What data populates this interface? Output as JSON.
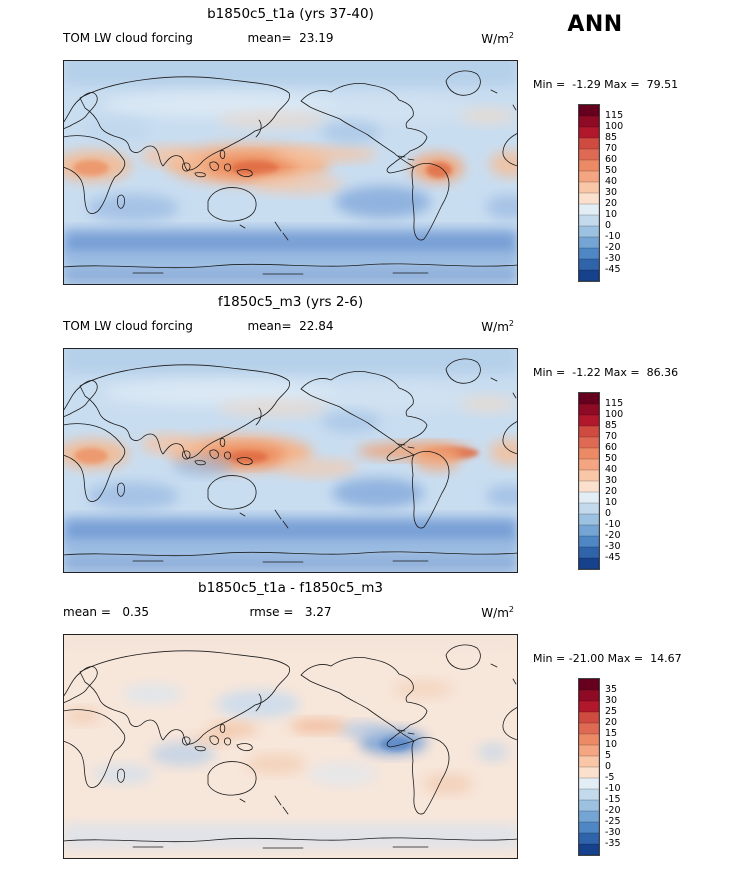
{
  "season_label": "ANN",
  "panels": [
    {
      "title": "b1850c5_t1a (yrs 37-40)",
      "left_text": "TOM LW cloud forcing",
      "center_text": "mean=  23.19",
      "units_base": "W/m",
      "units_exp": "2",
      "minmax": "Min =  -1.29 Max =  79.51"
    },
    {
      "title": "f1850c5_m3 (yrs 2-6)",
      "left_text": "TOM LW cloud forcing",
      "center_text": "mean=  22.84",
      "units_base": "W/m",
      "units_exp": "2",
      "minmax": "Min =  -1.22 Max =  86.36"
    },
    {
      "title": "b1850c5_t1a - f1850c5_m3",
      "left_text": "mean =   0.35",
      "center_text": "rmse =   3.27",
      "units_base": "W/m",
      "units_exp": "2",
      "minmax": "Min = -21.00 Max =  14.67"
    }
  ],
  "chart_data": [
    {
      "type": "heatmap",
      "subtype": "global-contour-map",
      "title": "b1850c5_t1a (yrs 37-40)",
      "variable": "TOM LW cloud forcing",
      "season": "ANN",
      "units": "W/m^2",
      "stats": {
        "mean": 23.19,
        "min": -1.29,
        "max": 79.51
      },
      "colorbar_levels": [
        115,
        100,
        85,
        70,
        60,
        50,
        40,
        30,
        20,
        10,
        0,
        -10,
        -20,
        -30,
        -45
      ],
      "colorbar_colors": [
        "#67001f",
        "#8f0a25",
        "#b2182b",
        "#cf4b40",
        "#de6a54",
        "#ec8a66",
        "#f4a582",
        "#f9c6a8",
        "#fbe0cd",
        "#e3edf6",
        "#c3d9ec",
        "#9cc1e1",
        "#74a5d4",
        "#4f86c4",
        "#2f64ab",
        "#16418c"
      ]
    },
    {
      "type": "heatmap",
      "subtype": "global-contour-map",
      "title": "f1850c5_m3 (yrs 2-6)",
      "variable": "TOM LW cloud forcing",
      "season": "ANN",
      "units": "W/m^2",
      "stats": {
        "mean": 22.84,
        "min": -1.22,
        "max": 86.36
      },
      "colorbar_levels": [
        115,
        100,
        85,
        70,
        60,
        50,
        40,
        30,
        20,
        10,
        0,
        -10,
        -20,
        -30,
        -45
      ],
      "colorbar_colors": [
        "#67001f",
        "#8f0a25",
        "#b2182b",
        "#cf4b40",
        "#de6a54",
        "#ec8a66",
        "#f4a582",
        "#f9c6a8",
        "#fbe0cd",
        "#e3edf6",
        "#c3d9ec",
        "#9cc1e1",
        "#74a5d4",
        "#4f86c4",
        "#2f64ab",
        "#16418c"
      ]
    },
    {
      "type": "heatmap",
      "subtype": "global-contour-map-difference",
      "title": "b1850c5_t1a - f1850c5_m3",
      "variable": "TOM LW cloud forcing",
      "season": "ANN",
      "units": "W/m^2",
      "stats": {
        "mean": 0.35,
        "rmse": 3.27,
        "min": -21.0,
        "max": 14.67
      },
      "colorbar_levels": [
        35,
        30,
        25,
        20,
        15,
        10,
        5,
        0,
        -5,
        -10,
        -15,
        -20,
        -25,
        -30,
        -35
      ],
      "colorbar_colors": [
        "#67001f",
        "#8f0a25",
        "#b2182b",
        "#cf4b40",
        "#de6a54",
        "#ec8a66",
        "#f4a582",
        "#f9c6a8",
        "#fbe0cd",
        "#e3edf6",
        "#c3d9ec",
        "#9cc1e1",
        "#74a5d4",
        "#4f86c4",
        "#2f64ab",
        "#16418c"
      ]
    }
  ]
}
